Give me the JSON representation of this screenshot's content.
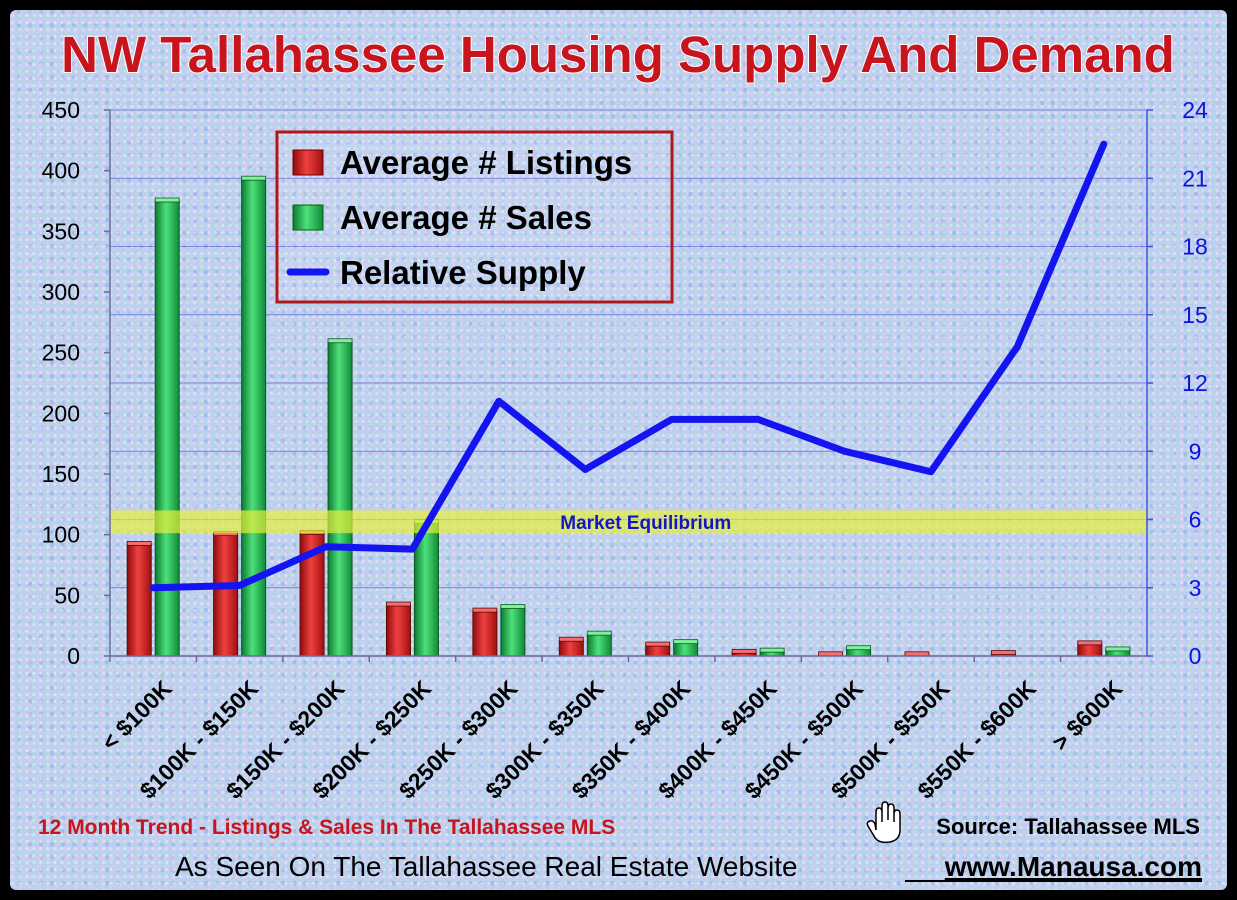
{
  "title": "NW Tallahassee Housing Supply And Demand",
  "chart_data": {
    "type": "bar",
    "categories": [
      "< $100K",
      "$100K - $150K",
      "$150K - $200K",
      "$200K - $250K",
      "$250K - $300K",
      "$300K - $350K",
      "$350K - $400K",
      "$400K - $450K",
      "$450K - $500K",
      "$500K - $550K",
      "$550K - $600K",
      "> $600K"
    ],
    "series": [
      {
        "name": "Average # Listings",
        "type": "bar",
        "axis": "left",
        "color": "#d41a1a",
        "values": [
          92,
          100,
          101,
          42,
          37,
          13,
          9,
          3,
          1,
          1,
          2,
          10
        ]
      },
      {
        "name": "Average # Sales",
        "type": "bar",
        "axis": "left",
        "color": "#22b04a",
        "values": [
          375,
          393,
          259,
          110,
          40,
          18,
          11,
          4,
          6,
          0,
          0,
          5
        ]
      },
      {
        "name": "Relative Supply",
        "type": "line",
        "axis": "right",
        "color": "#1414f0",
        "values": [
          3.0,
          3.1,
          4.8,
          4.7,
          11.2,
          8.2,
          10.4,
          10.4,
          9.0,
          8.1,
          13.6,
          22.5
        ]
      }
    ],
    "y_left": {
      "min": 0,
      "max": 450,
      "ticks": [
        0,
        50,
        100,
        150,
        200,
        250,
        300,
        350,
        400,
        450
      ]
    },
    "y_right": {
      "min": 0,
      "max": 24,
      "ticks": [
        0,
        3,
        6,
        9,
        12,
        15,
        18,
        21,
        24
      ]
    },
    "band": {
      "label": "Market Equilibrium",
      "from": 5.4,
      "to": 6.4,
      "axis": "right",
      "color": "#e6f03c"
    },
    "grid": true,
    "legend": {
      "position": "top-left"
    }
  },
  "footer": {
    "trend": "12 Month Trend - Listings & Sales In The Tallahassee MLS",
    "source": "Source: Tallahassee MLS",
    "seen_on": "As Seen On The Tallahassee Real Estate Website",
    "url": "www.Manausa.com"
  }
}
